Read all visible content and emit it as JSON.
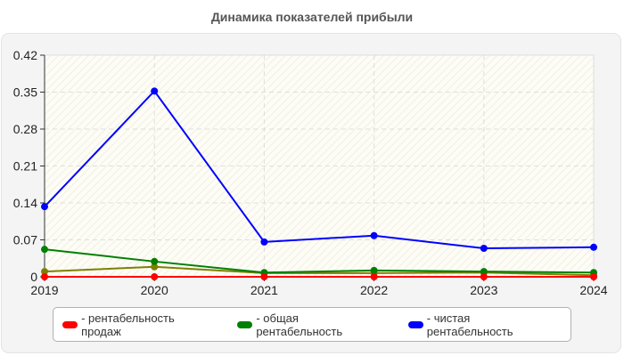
{
  "title": "Динамика показателей прибыли",
  "colors": {
    "sales": "#ff0000",
    "total": "#008000",
    "net": "#0000ff",
    "extra": "#808000",
    "plot_bg": "#fdfdf6",
    "grid": "#dddddd"
  },
  "legend": [
    {
      "label": "- рентабельность продаж",
      "color": "#ff0000"
    },
    {
      "label": "- общая рентабельность",
      "color": "#008000"
    },
    {
      "label": "- чистая рентабельность",
      "color": "#0000ff"
    }
  ],
  "chart_data": {
    "type": "line",
    "title": "Динамика показателей прибыли",
    "xlabel": "",
    "ylabel": "",
    "categories": [
      "2019",
      "2020",
      "2021",
      "2022",
      "2023",
      "2024"
    ],
    "y_ticks": [
      "0",
      "0.07",
      "0.14",
      "0.21",
      "0.28",
      "0.35",
      "0.42"
    ],
    "ylim": [
      0,
      0.42
    ],
    "grid": true,
    "legend_position": "bottom",
    "series": [
      {
        "name": "рентабельность продаж",
        "color": "#ff0000",
        "values": [
          0,
          0,
          0,
          0,
          0,
          0
        ]
      },
      {
        "name": "общая рентабельность",
        "color": "#008000",
        "values": [
          0.052,
          0.029,
          0.008,
          0.012,
          0.01,
          0.008
        ]
      },
      {
        "name": "чистая рентабельность",
        "color": "#0000ff",
        "values": [
          0.133,
          0.352,
          0.066,
          0.078,
          0.054,
          0.056
        ]
      },
      {
        "name": "",
        "color": "#808000",
        "values": [
          0.01,
          0.019,
          0.007,
          0.007,
          0.008,
          0.003
        ]
      }
    ]
  }
}
